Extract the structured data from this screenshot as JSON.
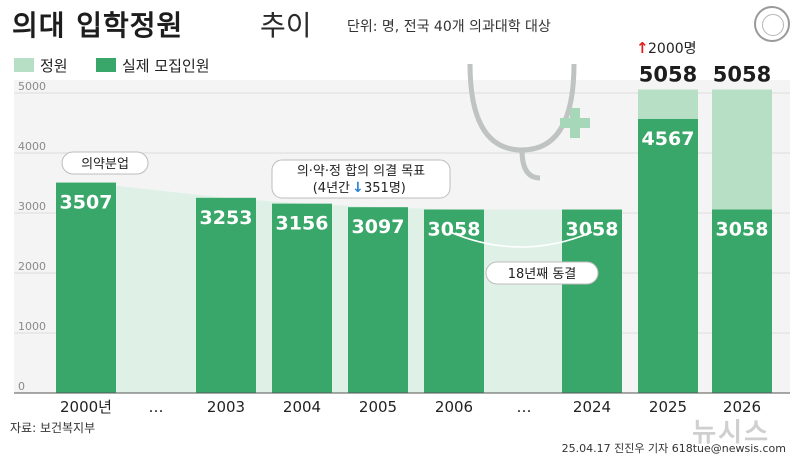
{
  "header": {
    "title_main": "의대 입학정원",
    "title_sub": "추이",
    "unit_note": "단위: 명, 전국 40개 의과대학 대상"
  },
  "legend": {
    "quota_label": "정원",
    "actual_label": "실제 모집인원"
  },
  "colors": {
    "quota": "#b6dfc6",
    "actual": "#3aa76a",
    "area": "#dff1e6",
    "increase_arrow": "#e02020",
    "decrease_arrow": "#2a7fd6"
  },
  "chart_data": {
    "type": "bar",
    "categories": [
      "2000년",
      "…",
      "2003",
      "2004",
      "2005",
      "2006",
      "…",
      "2024",
      "2025",
      "2026"
    ],
    "series": [
      {
        "name": "정원",
        "values": [
          null,
          null,
          null,
          null,
          null,
          null,
          null,
          null,
          5058,
          5058
        ]
      },
      {
        "name": "실제 모집인원",
        "values": [
          3507,
          null,
          3253,
          3156,
          3097,
          3058,
          null,
          3058,
          4567,
          3058
        ]
      }
    ],
    "quota_value_labels": [
      "",
      "",
      "",
      "",
      "",
      "",
      "",
      "",
      "5058",
      "5058"
    ],
    "actual_value_labels": [
      "3507",
      "",
      "3253",
      "3156",
      "3097",
      "3058",
      "",
      "3058",
      "4567",
      "3058"
    ],
    "y_ticks": [
      "0",
      "1000",
      "2000",
      "3000",
      "4000",
      "5000"
    ],
    "ylim": [
      0,
      5300
    ],
    "grid": true,
    "annotations": {
      "separation": "의약분업",
      "agreement_line1": "의·약·정 합의 의결 목표",
      "agreement_line2_pre": "(4년간 ",
      "agreement_line2_num": "351명)",
      "decrease_arrow": "↓",
      "freeze": "18년째 동결",
      "increase_arrow": "↑",
      "increase": "2000명"
    }
  },
  "footer": {
    "source": "자료: 보건복지부",
    "credit": "25.04.17 진진우 기자 618tue@newsis.com",
    "watermark": "뉴시스"
  }
}
